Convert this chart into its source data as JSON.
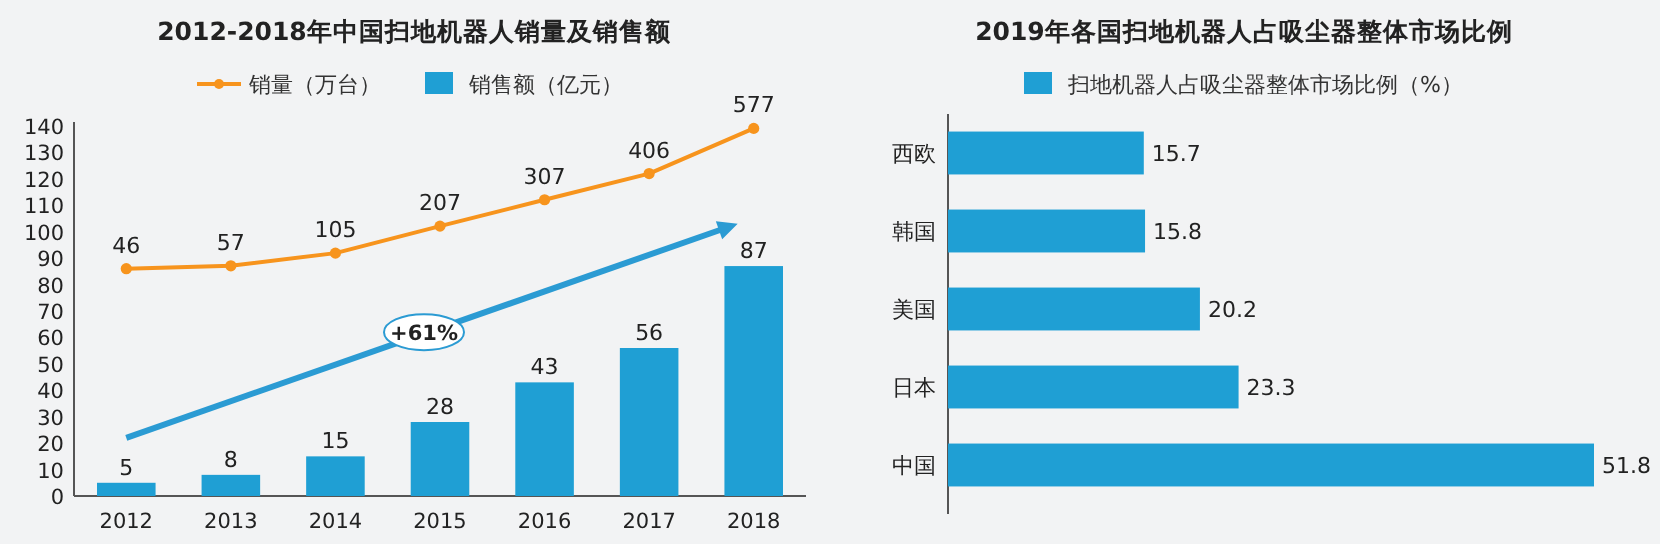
{
  "chart_data": [
    {
      "type": "bar",
      "title": "2012-2018年中国扫地机器人销量及销售额",
      "categories": [
        "2012",
        "2013",
        "2014",
        "2015",
        "2016",
        "2017",
        "2018"
      ],
      "series": [
        {
          "name": "销量（万台）",
          "type": "line",
          "axis": "y2",
          "color": "#f7941d",
          "values": [
            46,
            57,
            105,
            207,
            307,
            406,
            577
          ]
        },
        {
          "name": "销售额（亿元）",
          "type": "bar",
          "color": "#1f9fd4",
          "values": [
            5,
            8,
            15,
            28,
            43,
            56,
            87
          ]
        }
      ],
      "ylim": [
        0,
        140
      ],
      "yticks": [
        0,
        10,
        20,
        30,
        40,
        50,
        60,
        70,
        80,
        90,
        100,
        110,
        120,
        130,
        140
      ],
      "y2lim": [
        -814,
        586
      ],
      "marker": "circle",
      "data_labels": true,
      "legend": "top",
      "annotations": [
        "+61%"
      ]
    },
    {
      "type": "bar",
      "orientation": "horizontal",
      "title": "2019年各国扫地机器人占吸尘器整体市场比例",
      "categories": [
        "西欧",
        "韩国",
        "美国",
        "日本",
        "中国"
      ],
      "series": [
        {
          "name": "扫地机器人占吸尘器整体市场比例（%）",
          "color": "#1f9fd4",
          "values": [
            15.7,
            15.8,
            20.2,
            23.3,
            51.8
          ]
        }
      ],
      "data_labels": true,
      "legend": "top"
    }
  ]
}
